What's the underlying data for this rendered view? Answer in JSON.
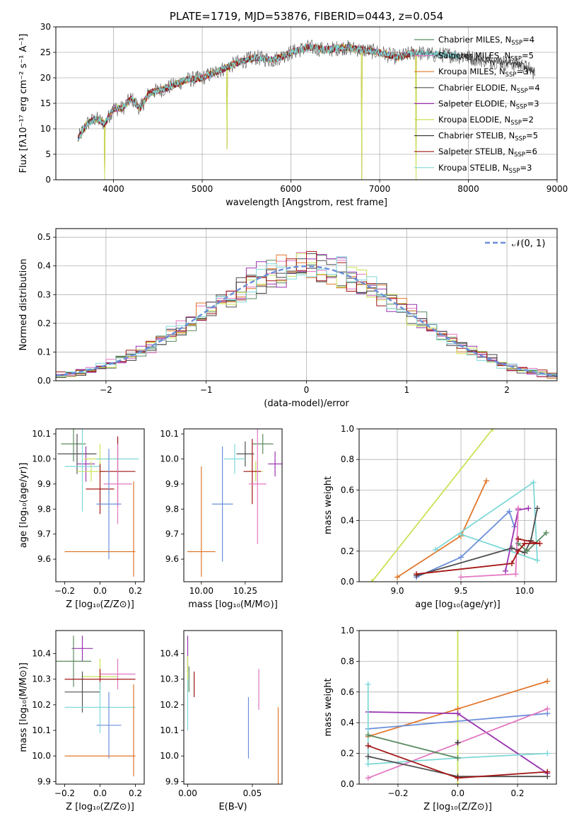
{
  "colors": {
    "chabrier_miles": "#5a8a5f",
    "salpeter_miles": "#e377c2",
    "kroupa_miles": "#e0772b",
    "chabrier_elodie": "#505050",
    "salpeter_elodie": "#9933b0",
    "kroupa_elodie": "#c7e354",
    "chabrier_stelib": "#404040",
    "salpeter_stelib": "#a31515",
    "kroupa_stelib": "#7fd8d8",
    "gaussian": "#6b8fdb",
    "blue": "#6b8fdb"
  },
  "chart_data": [
    {
      "id": "spectrum",
      "type": "line",
      "title": "PLATE=1719, MJD=53876, FIBERID=0443, z=0.054",
      "xlabel": "wavelength [Angstrom, rest frame]",
      "ylabel": "Flux [fλ10⁻¹⁷ erg cm⁻² s⁻¹ A⁻¹]",
      "xlim": [
        3350,
        9000
      ],
      "ylim": [
        0,
        30
      ],
      "xticks": [
        "4000",
        "5000",
        "6000",
        "7000",
        "8000",
        "9000"
      ],
      "yticks": [
        "0",
        "5",
        "10",
        "15",
        "20",
        "25",
        "30"
      ],
      "legend_position": "right",
      "legend": [
        {
          "label": "Chabrier MILES, N_SSP=4",
          "color": "#5a8a5f"
        },
        {
          "label": "Salpeter MILES, N_SSP=5",
          "color": "#e377c2"
        },
        {
          "label": "Kroupa MILES, N_SSP=3",
          "color": "#e0772b"
        },
        {
          "label": "Chabrier ELODIE, N_SSP=4",
          "color": "#505050"
        },
        {
          "label": "Salpeter ELODIE, N_SSP=3",
          "color": "#9933b0"
        },
        {
          "label": "Kroupa ELODIE, N_SSP=2",
          "color": "#c7e354"
        },
        {
          "label": "Chabrier STELIB, N_SSP=5",
          "color": "#404040"
        },
        {
          "label": "Salpeter STELIB, N_SSP=6",
          "color": "#a31515"
        },
        {
          "label": "Kroupa STELIB, N_SSP=3",
          "color": "#7fd8d8"
        }
      ],
      "data_envelope": {
        "x": [
          3600,
          3700,
          3800,
          3900,
          4000,
          4100,
          4200,
          4300,
          4400,
          4600,
          4800,
          5000,
          5200,
          5400,
          5600,
          5800,
          6000,
          6200,
          6400,
          6600,
          6800,
          7000,
          7200,
          7400,
          7600,
          7800,
          8000,
          8200,
          8400,
          8600,
          8750
        ],
        "y": [
          8,
          11,
          12,
          11,
          14,
          14,
          16,
          14,
          17,
          18,
          19.5,
          20,
          21.5,
          23,
          24,
          23.5,
          25,
          26,
          25.5,
          26,
          25.5,
          25,
          24,
          25,
          24.5,
          24.5,
          24,
          23.5,
          23,
          22.5,
          21
        ]
      },
      "dips": [
        {
          "x": 3900,
          "y": 0
        },
        {
          "x": 6800,
          "y": 0
        },
        {
          "x": 7410,
          "y": 0
        },
        {
          "x": 5280,
          "y": 6
        }
      ]
    },
    {
      "id": "residuals",
      "type": "histogram",
      "xlabel": "(data-model)/error",
      "ylabel": "Normed distribution",
      "xlim": [
        -2.5,
        2.5
      ],
      "ylim": [
        0,
        0.53
      ],
      "xticks": [
        "−2",
        "−1",
        "0",
        "1",
        "2"
      ],
      "yticks": [
        "0.0",
        "0.1",
        "0.2",
        "0.3",
        "0.4",
        "0.5"
      ],
      "legend_position": "top-right",
      "legend": [
        {
          "label": "𝒩(0, 1)",
          "color": "#6b8fdb"
        }
      ],
      "bin_width": 0.1,
      "description": "Nine step histograms (one per model) closely following a standard normal curve N(0,1)."
    },
    {
      "id": "age_vs_Z",
      "type": "errorbar",
      "xlabel": "Z [log₁₀(Z/Z⊙)]",
      "ylabel": "age [log₁₀(age/yr)]",
      "xlim": [
        -0.25,
        0.25
      ],
      "ylim": [
        9.51,
        10.12
      ],
      "xticks": [
        "−0.2",
        "0.0",
        "0.2"
      ],
      "yticks": [
        "9.6",
        "9.7",
        "9.8",
        "9.9",
        "10.0",
        "10.1"
      ],
      "points": [
        {
          "x": -0.15,
          "xerr": 0.07,
          "y": 10.06,
          "yerr": 0.07,
          "color": "#5a8a5f"
        },
        {
          "x": -0.13,
          "xerr": 0.11,
          "y": 10.02,
          "yerr": 0.08,
          "color": "#505050"
        },
        {
          "x": -0.08,
          "xerr": 0.05,
          "y": 9.98,
          "yerr": 0.07,
          "color": "#9933b0"
        },
        {
          "x": 0.0,
          "xerr": 0.09,
          "y": 10.0,
          "yerr": 0.06,
          "color": "#c7e354"
        },
        {
          "x": -0.05,
          "xerr": 0.08,
          "y": 9.95,
          "yerr": 0.04,
          "color": "#c7e354"
        },
        {
          "x": 0.1,
          "xerr": 0.12,
          "y": 10.0,
          "yerr": 0.08,
          "color": "#7fd8d8"
        },
        {
          "x": -0.1,
          "xerr": 0.1,
          "y": 9.97,
          "yerr": 0.18,
          "color": "#7fd8d8"
        },
        {
          "x": 0.1,
          "xerr": 0.1,
          "y": 9.95,
          "yerr": 0.14,
          "color": "#a31515"
        },
        {
          "x": 0.0,
          "xerr": 0.08,
          "y": 9.88,
          "yerr": 0.1,
          "color": "#a31515"
        },
        {
          "x": 0.1,
          "xerr": 0.08,
          "y": 9.9,
          "yerr": 0.16,
          "color": "#e377c2"
        },
        {
          "x": 0.05,
          "xerr": 0.07,
          "y": 9.82,
          "yerr": 0.22,
          "color": "#6b8fdb"
        },
        {
          "x": 0.0,
          "xerr": 0.2,
          "y": 9.63,
          "yerr": 0.0,
          "color": "#e0772b"
        },
        {
          "x": 0.19,
          "xerr": 0.0,
          "y": 9.72,
          "yerr": 0.19,
          "color": "#e0772b"
        }
      ]
    },
    {
      "id": "age_vs_mass",
      "type": "errorbar",
      "xlabel": "mass [log₁₀(M/M⊙)]",
      "ylabel": "",
      "xlim": [
        9.9,
        10.46
      ],
      "ylim": [
        9.51,
        10.12
      ],
      "xticks": [
        "10.00",
        "10.25"
      ],
      "yticks": [
        "9.6",
        "9.7",
        "9.8",
        "9.9",
        "10.0",
        "10.1"
      ],
      "points": [
        {
          "x": 10.35,
          "xerr": 0.06,
          "y": 10.06,
          "yerr": 0.04,
          "color": "#5a8a5f"
        },
        {
          "x": 10.25,
          "xerr": 0.05,
          "y": 10.02,
          "yerr": 0.05,
          "color": "#505050"
        },
        {
          "x": 10.42,
          "xerr": 0.04,
          "y": 9.98,
          "yerr": 0.05,
          "color": "#9933b0"
        },
        {
          "x": 10.31,
          "xerr": 0.04,
          "y": 9.95,
          "yerr": 0.04,
          "color": "#c7e354"
        },
        {
          "x": 10.19,
          "xerr": 0.06,
          "y": 10.0,
          "yerr": 0.06,
          "color": "#7fd8d8"
        },
        {
          "x": 10.29,
          "xerr": 0.05,
          "y": 9.95,
          "yerr": 0.13,
          "color": "#a31515"
        },
        {
          "x": 10.32,
          "xerr": 0.05,
          "y": 9.9,
          "yerr": 0.24,
          "color": "#e377c2"
        },
        {
          "x": 10.12,
          "xerr": 0.06,
          "y": 9.82,
          "yerr": 0.23,
          "color": "#6b8fdb"
        },
        {
          "x": 10.0,
          "xerr": 0.08,
          "y": 9.63,
          "yerr": 0.0,
          "color": "#e0772b"
        },
        {
          "x": 10.0,
          "xerr": 0.0,
          "y": 9.75,
          "yerr": 0.22,
          "color": "#e0772b"
        }
      ]
    },
    {
      "id": "weight_vs_age",
      "type": "line",
      "xlabel": "age [log₁₀(age/yr)]",
      "ylabel": "mass weight",
      "xlim": [
        8.7,
        10.25
      ],
      "ylim": [
        0,
        1
      ],
      "xticks": [
        "9.0",
        "9.5",
        "10.0"
      ],
      "yticks": [
        "0.0",
        "0.2",
        "0.4",
        "0.6",
        "0.8",
        "1.0"
      ],
      "series": [
        {
          "color": "#c7e354",
          "x": [
            8.8,
            9.75
          ],
          "y": [
            0.0,
            1.0
          ]
        },
        {
          "color": "#e0772b",
          "x": [
            9.0,
            9.5,
            9.7
          ],
          "y": [
            0.03,
            0.3,
            0.66
          ]
        },
        {
          "color": "#7fd8d8",
          "x": [
            9.3,
            10.07,
            10.1,
            9.5
          ],
          "y": [
            0.21,
            0.65,
            0.14,
            0.31
          ]
        },
        {
          "color": "#6b8fdb",
          "x": [
            9.15,
            9.5,
            9.88,
            9.92
          ],
          "y": [
            0.03,
            0.16,
            0.46,
            0.36
          ]
        },
        {
          "color": "#9933b0",
          "x": [
            9.85,
            9.95,
            10.03
          ],
          "y": [
            0.07,
            0.47,
            0.48
          ]
        },
        {
          "color": "#e377c2",
          "x": [
            9.5,
            9.93,
            9.95
          ],
          "y": [
            0.03,
            0.05,
            0.48
          ]
        },
        {
          "color": "#505050",
          "x": [
            9.15,
            9.9,
            10.0,
            10.05,
            10.1
          ],
          "y": [
            0.04,
            0.22,
            0.19,
            0.27,
            0.48
          ]
        },
        {
          "color": "#5a8a5f",
          "x": [
            9.95,
            10.02,
            10.17
          ],
          "y": [
            0.25,
            0.2,
            0.32
          ]
        },
        {
          "color": "#a31515",
          "x": [
            9.15,
            9.9,
            9.95,
            10.0,
            10.12,
            9.95
          ],
          "y": [
            0.05,
            0.12,
            0.2,
            0.25,
            0.25,
            0.28
          ]
        }
      ]
    },
    {
      "id": "mass_vs_Z",
      "type": "errorbar",
      "xlabel": "Z [log₁₀(Z/Z⊙)]",
      "ylabel": "mass [log₁₀(M/M⊙)]",
      "xlim": [
        -0.25,
        0.25
      ],
      "ylim": [
        9.89,
        10.49
      ],
      "xticks": [
        "−0.2",
        "0.0",
        "0.2"
      ],
      "yticks": [
        "9.9",
        "10.0",
        "10.1",
        "10.2",
        "10.3",
        "10.4"
      ],
      "points": [
        {
          "x": -0.1,
          "xerr": 0.06,
          "y": 10.42,
          "yerr": 0.05,
          "color": "#9933b0"
        },
        {
          "x": -0.15,
          "xerr": 0.1,
          "y": 10.37,
          "yerr": 0.1,
          "color": "#5a8a5f"
        },
        {
          "x": 0.0,
          "xerr": 0.1,
          "y": 10.31,
          "yerr": 0.07,
          "color": "#c7e354"
        },
        {
          "x": 0.1,
          "xerr": 0.1,
          "y": 10.32,
          "yerr": 0.06,
          "color": "#e377c2"
        },
        {
          "x": 0.0,
          "xerr": 0.2,
          "y": 10.3,
          "yerr": 0.04,
          "color": "#a31515"
        },
        {
          "x": -0.1,
          "xerr": 0.1,
          "y": 10.25,
          "yerr": 0.08,
          "color": "#505050"
        },
        {
          "x": 0.0,
          "xerr": 0.2,
          "y": 10.19,
          "yerr": 0.1,
          "color": "#7fd8d8"
        },
        {
          "x": 0.05,
          "xerr": 0.07,
          "y": 10.12,
          "yerr": 0.13,
          "color": "#6b8fdb"
        },
        {
          "x": 0.0,
          "xerr": 0.2,
          "y": 10.0,
          "yerr": 0.0,
          "color": "#e0772b"
        },
        {
          "x": 0.19,
          "xerr": 0.0,
          "y": 10.1,
          "yerr": 0.18,
          "color": "#e0772b"
        }
      ]
    },
    {
      "id": "mass_vs_ebv",
      "type": "errorbar",
      "xlabel": "E(B-V)",
      "ylabel": "",
      "xlim": [
        -0.003,
        0.073
      ],
      "ylim": [
        9.89,
        10.49
      ],
      "xticks": [
        "0.00",
        "0.05"
      ],
      "yticks": [
        "9.9",
        "10.0",
        "10.1",
        "10.2",
        "10.3",
        "10.4"
      ],
      "points": [
        {
          "x": 0.0,
          "xerr": 0.0,
          "y": 10.4,
          "yerr": 0.07,
          "color": "#9933b0"
        },
        {
          "x": 0.0,
          "xerr": 0.0,
          "y": 10.32,
          "yerr": 0.07,
          "color": "#c7e354"
        },
        {
          "x": 0.001,
          "xerr": 0.0,
          "y": 10.3,
          "yerr": 0.05,
          "color": "#5a8a5f"
        },
        {
          "x": 0.005,
          "xerr": 0.0,
          "y": 10.28,
          "yerr": 0.05,
          "color": "#a31515"
        },
        {
          "x": 0.0,
          "xerr": 0.0,
          "y": 10.2,
          "yerr": 0.1,
          "color": "#7fd8d8"
        },
        {
          "x": 0.047,
          "xerr": 0.0,
          "y": 10.11,
          "yerr": 0.12,
          "color": "#6b8fdb"
        },
        {
          "x": 0.055,
          "xerr": 0.0,
          "y": 10.26,
          "yerr": 0.08,
          "color": "#e377c2"
        },
        {
          "x": 0.07,
          "xerr": 0.0,
          "y": 10.03,
          "yerr": 0.16,
          "color": "#e0772b"
        }
      ]
    },
    {
      "id": "weight_vs_Z",
      "type": "line",
      "xlabel": "Z [log₁₀(Z/Z⊙)]",
      "ylabel": "mass weight",
      "xlim": [
        -0.33,
        0.33
      ],
      "ylim": [
        0,
        1
      ],
      "xticks": [
        "−0.2",
        "0.0",
        "0.2"
      ],
      "yticks": [
        "0.0",
        "0.2",
        "0.4",
        "0.6",
        "0.8",
        "1.0"
      ],
      "series": [
        {
          "color": "#c7e354",
          "x": [
            0.0,
            0.0
          ],
          "y": [
            0.0,
            1.0
          ]
        },
        {
          "color": "#e0772b",
          "x": [
            -0.3,
            0.0,
            0.3
          ],
          "y": [
            0.31,
            0.49,
            0.67
          ]
        },
        {
          "color": "#6b8fdb",
          "x": [
            -0.3,
            0.3
          ],
          "y": [
            0.36,
            0.46
          ]
        },
        {
          "color": "#9933b0",
          "x": [
            -0.3,
            0.0,
            0.3
          ],
          "y": [
            0.47,
            0.46,
            0.07
          ]
        },
        {
          "color": "#e377c2",
          "x": [
            -0.3,
            0.3
          ],
          "y": [
            0.04,
            0.49
          ]
        },
        {
          "color": "#7fd8d8",
          "x": [
            -0.3,
            -0.3,
            0.0,
            0.3
          ],
          "y": [
            0.65,
            0.13,
            0.17,
            0.2
          ]
        },
        {
          "color": "#5a8a5f",
          "x": [
            -0.3,
            0.0
          ],
          "y": [
            0.32,
            0.17
          ]
        },
        {
          "color": "#505050",
          "x": [
            -0.3,
            0.0,
            0.3
          ],
          "y": [
            0.18,
            0.05,
            0.05
          ]
        },
        {
          "color": "#a31515",
          "x": [
            -0.3,
            0.0,
            0.3
          ],
          "y": [
            0.25,
            0.04,
            0.08
          ]
        },
        {
          "color": "#404040",
          "x": [
            0.0,
            0.0
          ],
          "y": [
            0.27,
            0.27
          ]
        }
      ]
    }
  ]
}
